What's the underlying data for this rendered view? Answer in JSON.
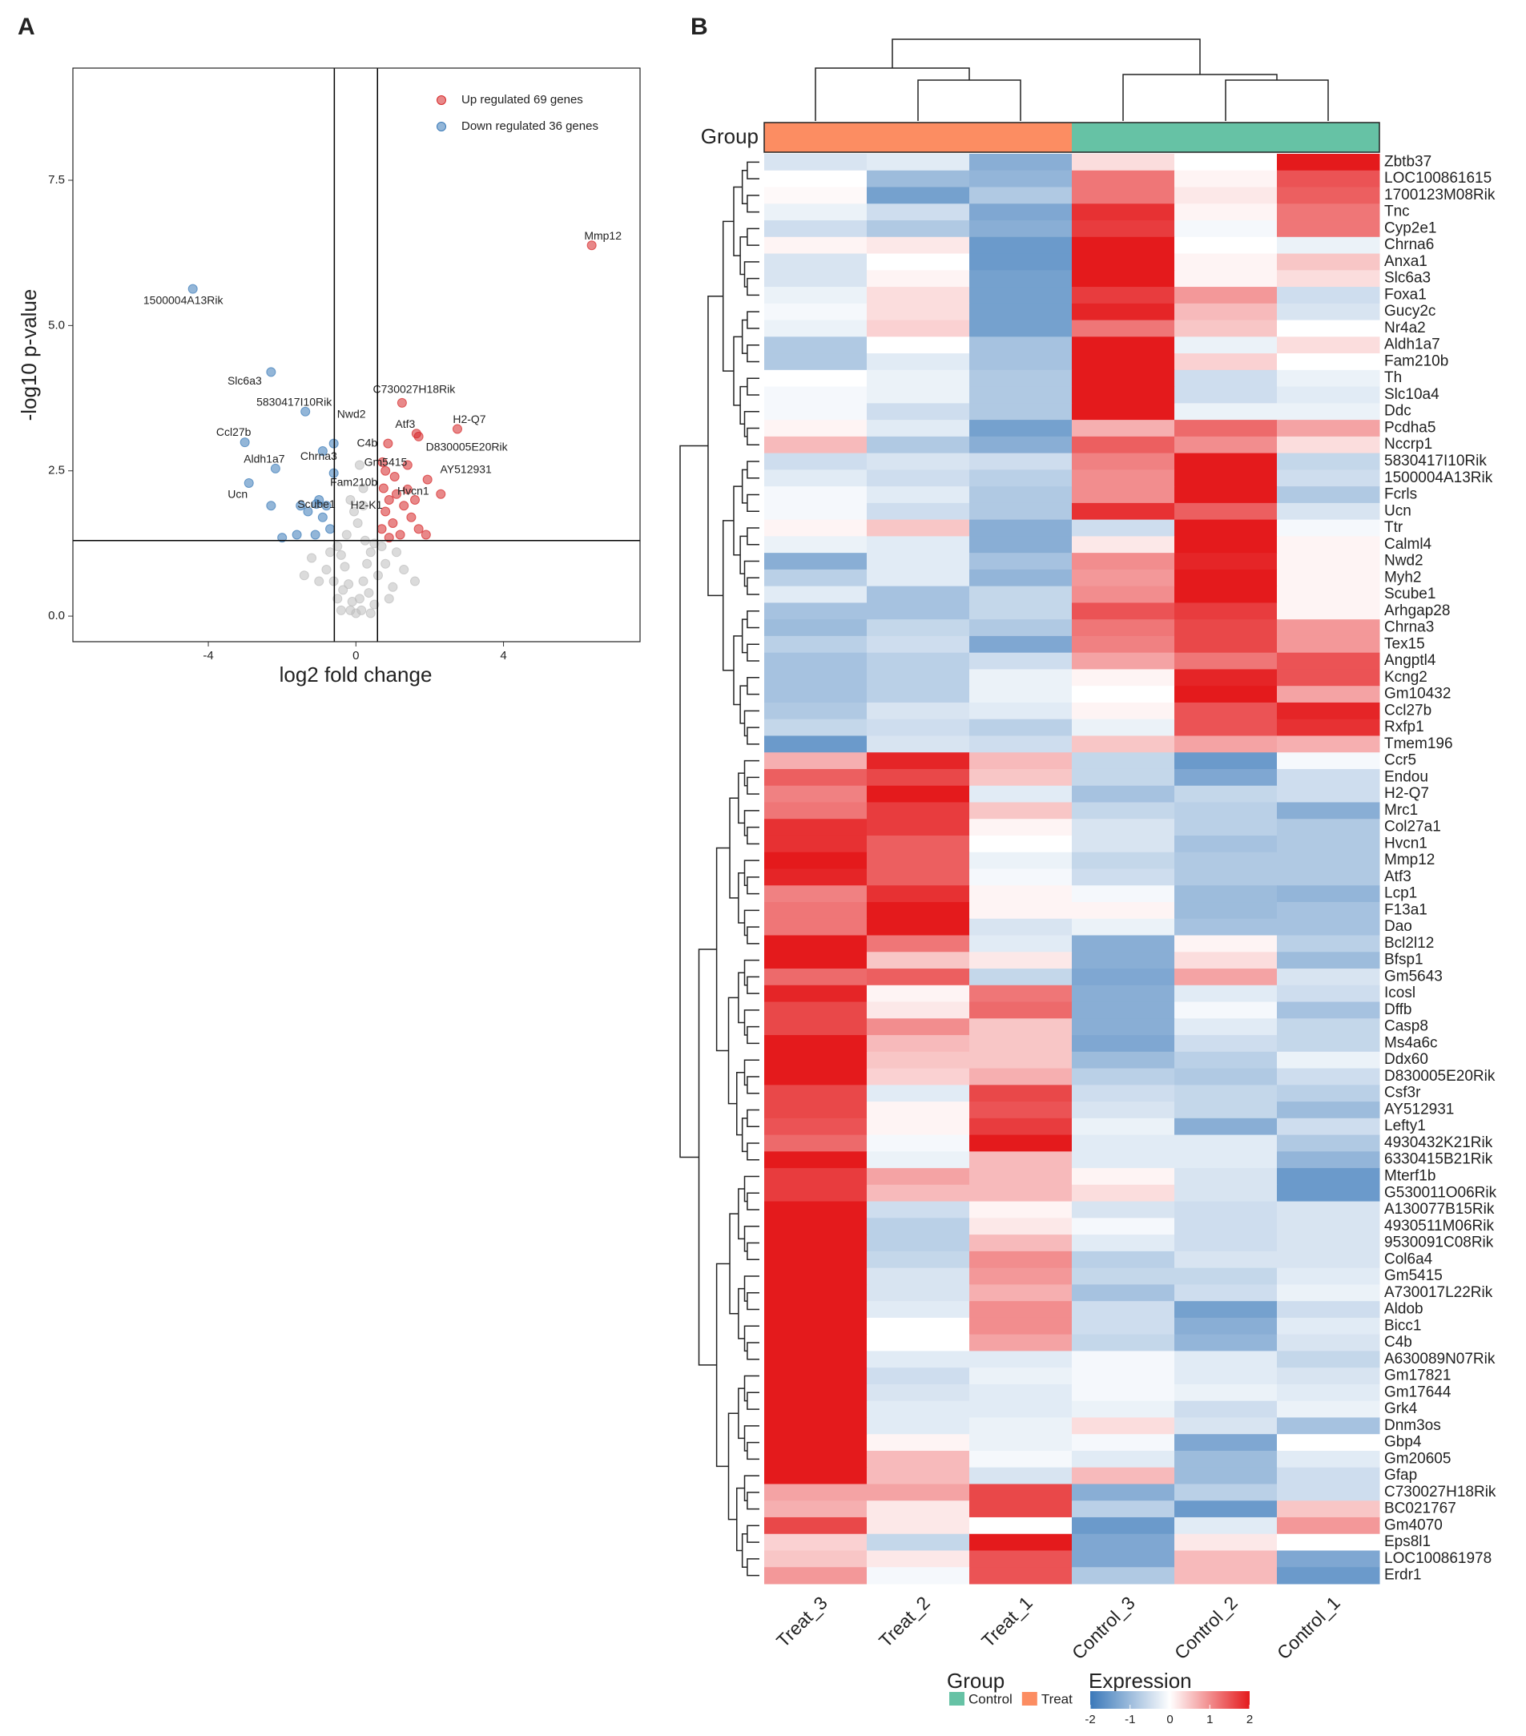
{
  "chart_data": [
    {
      "type": "scatter",
      "panel": "A",
      "xlabel": "log2 fold change",
      "ylabel": "-log10 p-value",
      "xlim": [
        -7.67,
        7.7
      ],
      "ylim": [
        -0.44,
        9.43
      ],
      "xticks": [
        -4,
        0,
        4
      ],
      "yticks": [
        {
          "value": 0,
          "label": "0.0"
        },
        2.5,
        {
          "value": 5,
          "label": "5.0"
        },
        7.5
      ],
      "thresholds": {
        "x": [
          -0.585,
          0.585
        ],
        "y": 1.301
      },
      "legend": "top-right",
      "series": [
        {
          "name": "Up regulated 69 genes",
          "color": "#d62728",
          "x": [
            6.39,
            1.25,
            1.64,
            2.75,
            0.87,
            1.7,
            0.72,
            1.94,
            1.4,
            0.7,
            0.8,
            0.9,
            1.0,
            1.1,
            1.2,
            1.3,
            0.75,
            1.5,
            1.7,
            0.9,
            1.05,
            1.6,
            1.9,
            0.8,
            1.4,
            2.3
          ],
          "y": [
            6.38,
            3.67,
            3.14,
            3.22,
            2.97,
            3.09,
            2.65,
            2.35,
            2.18,
            1.5,
            1.8,
            2.0,
            1.6,
            2.1,
            1.4,
            1.9,
            2.2,
            1.7,
            1.5,
            1.35,
            2.4,
            2.0,
            1.4,
            2.5,
            2.6,
            2.1
          ],
          "labels": [
            "Mmp12",
            "C730027H18Rik",
            "Atf3",
            "H2-Q7",
            "C4b",
            "D830005E20Rik",
            "Gm5415",
            "AY512931",
            "Hvcn1",
            null,
            null,
            null,
            null,
            null,
            null,
            null,
            null,
            null,
            null,
            null,
            null,
            null,
            null,
            null,
            null,
            null
          ]
        },
        {
          "name": "Down regulated 36 genes",
          "color": "#3a7ab8",
          "x": [
            -4.42,
            -2.3,
            -1.37,
            -3.01,
            -2.18,
            -2.9,
            -0.6,
            -0.9,
            -0.6,
            -1.07,
            -0.7,
            -0.9,
            -1.1,
            -1.3,
            -1.6,
            -2.0,
            -0.8,
            -1.0,
            -2.3,
            -1.5
          ],
          "y": [
            5.63,
            4.2,
            3.52,
            2.99,
            2.54,
            2.29,
            2.97,
            2.84,
            2.46,
            1.93,
            1.5,
            1.7,
            1.4,
            1.8,
            1.4,
            1.35,
            1.9,
            2.0,
            1.9,
            1.9
          ],
          "labels": [
            "1500004A13Rik",
            "Slc6a3",
            "5830417I10Rik",
            "Ccl27b",
            "Aldh1a7",
            "Ucn",
            "Nwd2",
            "Chrna3",
            "Fam210b",
            "Scube1",
            null,
            null,
            null,
            null,
            null,
            null,
            null,
            null,
            null,
            null
          ]
        },
        {
          "color": "#bdbdbd",
          "x": [
            0.2,
            0,
            0.1,
            -0.1,
            0.2,
            -0.2,
            0.3,
            -0.3,
            0.4,
            -0.4,
            0.5,
            -0.5,
            0.15,
            -0.15,
            0.35,
            -0.35,
            0.6,
            -0.6,
            0.8,
            -0.8,
            1.0,
            -1.0,
            0.5,
            -0.5,
            1.3,
            -1.2,
            0.7,
            -0.7,
            0.25,
            -0.25,
            0.05,
            -0.05,
            0.2,
            0.1,
            -0.15,
            1.1,
            -1.4,
            1.6,
            0.4,
            -0.4,
            0.9
          ],
          "y": [
            1.9,
            0.05,
            0.3,
            0.25,
            0.6,
            0.55,
            0.9,
            0.85,
            1.1,
            1.05,
            1.25,
            1.2,
            0.1,
            0.1,
            0.4,
            0.45,
            0.7,
            0.6,
            0.9,
            0.8,
            0.5,
            0.6,
            0.2,
            0.3,
            0.8,
            1.0,
            1.2,
            1.1,
            1.3,
            1.4,
            1.6,
            1.8,
            2.2,
            2.6,
            2.0,
            1.1,
            0.7,
            0.6,
            0.05,
            0.1,
            0.3
          ],
          "labels": [
            "H2-K1",
            null,
            null,
            null,
            null,
            null,
            null,
            null,
            null,
            null,
            null,
            null,
            null,
            null,
            null,
            null,
            null,
            null,
            null,
            null,
            null,
            null,
            null,
            null,
            null,
            null,
            null,
            null,
            null,
            null,
            null,
            null,
            null,
            null,
            null,
            null,
            null,
            null,
            null,
            null,
            null
          ]
        }
      ]
    },
    {
      "type": "heatmap",
      "panel": "B",
      "columns": [
        "Treat_3",
        "Treat_2",
        "Treat_1",
        "Control_3",
        "Control_2",
        "Control_1"
      ],
      "group_title": "Group",
      "groups": [
        {
          "name": "Control",
          "color": "#66c2a5"
        },
        {
          "name": "Treat",
          "color": "#fc8d62"
        }
      ],
      "column_groups": [
        1,
        1,
        1,
        0,
        0,
        0
      ],
      "colors": [
        "#3a78b9",
        "#ffffff",
        "#e41a1c"
      ],
      "clim": [
        -2,
        2
      ],
      "legend_title": "Expression",
      "legend_ticks": [
        -2,
        -1,
        0,
        1,
        2
      ],
      "rows": [
        "Zbtb37",
        "LOC100861615",
        "1700123M08Rik",
        "Tnc",
        "Cyp2e1",
        "Chrna6",
        "Anxa1",
        "Slc6a3",
        "Foxa1",
        "Gucy2c",
        "Nr4a2",
        "Aldh1a7",
        "Fam210b",
        "Th",
        "Slc10a4",
        "Ddc",
        "Pcdha5",
        "Nccrp1",
        "5830417I10Rik",
        "1500004A13Rik",
        "Fcrls",
        "Ucn",
        "Ttr",
        "Calml4",
        "Nwd2",
        "Myh2",
        "Scube1",
        "Arhgap28",
        "Chrna3",
        "Tex15",
        "Angptl4",
        "Kcng2",
        "Gm10432",
        "Ccl27b",
        "Rxfp1",
        "Tmem196",
        "Ccr5",
        "Endou",
        "H2-Q7",
        "Mrc1",
        "Col27a1",
        "Hvcn1",
        "Mmp12",
        "Atf3",
        "Lcp1",
        "F13a1",
        "Dao",
        "Bcl2l12",
        "Bfsp1",
        "Gm5643",
        "Icosl",
        "Dffb",
        "Casp8",
        "Ms4a6c",
        "Ddx60",
        "D830005E20Rik",
        "Csf3r",
        "AY512931",
        "Lefty1",
        "4930432K21Rik",
        "6330415B21Rik",
        "Mterf1b",
        "G530011O06Rik",
        "A130077B15Rik",
        "4930511M06Rik",
        "9530091C08Rik",
        "Col6a4",
        "Gm5415",
        "A730017L22Rik",
        "Aldob",
        "Bicc1",
        "C4b",
        "A630089N07Rik",
        "Gm17821",
        "Gm17644",
        "Grk4",
        "Dnm3os",
        "Gbp4",
        "Gm20605",
        "Gfap",
        "C730027H18Rik",
        "BC021767",
        "Gm4070",
        "Eps8l1",
        "LOC100861978",
        "Erdr1"
      ],
      "values": [
        [
          -0.4,
          -0.3,
          -1.2,
          0.3,
          0,
          2
        ],
        [
          0,
          -1,
          -1.1,
          1.2,
          0.1,
          1.5
        ],
        [
          0.05,
          -1.4,
          -0.8,
          1.2,
          0.2,
          1.4
        ],
        [
          -0.2,
          -0.5,
          -1.3,
          1.8,
          0.1,
          1.2
        ],
        [
          -0.5,
          -0.8,
          -1.2,
          1.7,
          -0.1,
          1.2
        ],
        [
          0.1,
          0.2,
          -1.5,
          2,
          0,
          -0.2
        ],
        [
          -0.4,
          0,
          -1.5,
          2,
          0.1,
          0.5
        ],
        [
          -0.4,
          0.1,
          -1.4,
          2,
          0.1,
          0.3
        ],
        [
          -0.2,
          0.3,
          -1.4,
          1.7,
          0.9,
          -0.5
        ],
        [
          -0.1,
          0.3,
          -1.4,
          1.9,
          0.6,
          -0.4
        ],
        [
          -0.2,
          0.4,
          -1.4,
          1.2,
          0.5,
          0
        ],
        [
          -0.8,
          0,
          -0.9,
          2,
          -0.2,
          0.3
        ],
        [
          -0.8,
          -0.3,
          -0.9,
          2,
          0.4,
          0
        ],
        [
          0,
          -0.2,
          -0.8,
          2,
          -0.5,
          -0.2
        ],
        [
          -0.1,
          -0.2,
          -0.8,
          2,
          -0.5,
          -0.3
        ],
        [
          -0.1,
          -0.5,
          -0.8,
          2,
          -0.2,
          -0.2
        ],
        [
          0.1,
          -0.3,
          -1.4,
          0.7,
          1.3,
          0.8
        ],
        [
          0.6,
          -0.8,
          -1.2,
          1.4,
          1.0,
          0.3
        ],
        [
          -0.5,
          -0.4,
          -0.5,
          1.1,
          2,
          -0.6
        ],
        [
          -0.3,
          -0.5,
          -0.7,
          1.0,
          2,
          -0.5
        ],
        [
          -0.1,
          -0.3,
          -0.8,
          1.0,
          2,
          -0.8
        ],
        [
          -0.1,
          -0.5,
          -0.8,
          1.8,
          1.4,
          -0.4
        ],
        [
          0.1,
          0.5,
          -1.2,
          -0.5,
          2,
          -0.1
        ],
        [
          -0.2,
          -0.3,
          -1.2,
          0.2,
          2,
          0.1
        ],
        [
          -1.2,
          -0.3,
          -0.9,
          1.0,
          1.9,
          0.1
        ],
        [
          -0.7,
          -0.3,
          -1.1,
          0.9,
          2,
          0.1
        ],
        [
          -0.3,
          -0.9,
          -0.6,
          1.0,
          2,
          0.1
        ],
        [
          -0.9,
          -0.9,
          -0.6,
          1.5,
          1.7,
          0.1
        ],
        [
          -1.0,
          -0.6,
          -0.8,
          1.2,
          1.6,
          0.9
        ],
        [
          -0.7,
          -0.5,
          -1.3,
          1.1,
          1.6,
          0.9
        ],
        [
          -0.9,
          -0.7,
          -0.5,
          0.8,
          1.2,
          1.5
        ],
        [
          -0.9,
          -0.7,
          -0.2,
          0.1,
          1.9,
          1.5
        ],
        [
          -0.9,
          -0.7,
          -0.2,
          0,
          2,
          0.8
        ],
        [
          -0.8,
          -0.4,
          -0.3,
          0.1,
          1.5,
          1.9
        ],
        [
          -0.6,
          -0.5,
          -0.7,
          -0.2,
          1.5,
          1.8
        ],
        [
          -1.5,
          -0.4,
          -0.5,
          0.5,
          0.8,
          0.7
        ],
        [
          0.7,
          1.9,
          0.6,
          -0.6,
          -1.5,
          -0.1
        ],
        [
          1.4,
          1.6,
          0.5,
          -0.6,
          -1.3,
          -0.5
        ],
        [
          1.1,
          2,
          -0.3,
          -0.9,
          -0.6,
          -0.5
        ],
        [
          1.2,
          1.7,
          0.5,
          -0.6,
          -0.7,
          -1.2
        ],
        [
          1.8,
          1.7,
          0.1,
          -0.4,
          -0.7,
          -0.8
        ],
        [
          1.8,
          1.4,
          0,
          -0.4,
          -0.9,
          -0.8
        ],
        [
          2,
          1.4,
          -0.2,
          -0.6,
          -0.8,
          -0.8
        ],
        [
          1.9,
          1.4,
          -0.1,
          -0.5,
          -0.8,
          -0.8
        ],
        [
          1.1,
          1.8,
          0.1,
          -0.1,
          -1.0,
          -1.1
        ],
        [
          1.2,
          2,
          0.1,
          0.1,
          -1.0,
          -0.9
        ],
        [
          1.2,
          2,
          -0.4,
          -0.2,
          -0.9,
          -0.9
        ],
        [
          2,
          1.2,
          -0.3,
          -1.2,
          0.1,
          -0.7
        ],
        [
          2,
          0.5,
          0.2,
          -1.2,
          0.3,
          -1.0
        ],
        [
          1.3,
          1.4,
          -0.6,
          -1.3,
          0.8,
          -0.4
        ],
        [
          1.9,
          0.1,
          1.2,
          -1.2,
          -0.3,
          -0.5
        ],
        [
          1.6,
          0.2,
          1.3,
          -1.2,
          -0.1,
          -0.9
        ],
        [
          1.6,
          1,
          0.5,
          -1.2,
          -0.3,
          -0.6
        ],
        [
          2,
          0.6,
          0.5,
          -1.3,
          -0.5,
          -0.6
        ],
        [
          2,
          0.5,
          0.5,
          -1,
          -0.7,
          -0.2
        ],
        [
          2,
          0.4,
          0.7,
          -0.7,
          -0.8,
          -0.5
        ],
        [
          1.6,
          -0.3,
          1.6,
          -0.5,
          -0.6,
          -0.7
        ],
        [
          1.6,
          0.1,
          1.5,
          -0.4,
          -0.6,
          -1.0
        ],
        [
          1.5,
          0.1,
          1.7,
          -0.2,
          -1.2,
          -0.5
        ],
        [
          1.3,
          -0.1,
          2,
          -0.3,
          -0.3,
          -0.8
        ],
        [
          2,
          -0.2,
          0.6,
          -0.3,
          -0.3,
          -1.1
        ],
        [
          1.7,
          0.8,
          0.6,
          0.1,
          -0.4,
          -1.5
        ],
        [
          1.7,
          0.6,
          0.6,
          0.3,
          -0.4,
          -1.5
        ],
        [
          2,
          -0.5,
          0.1,
          -0.4,
          -0.5,
          -0.4
        ],
        [
          2,
          -0.7,
          0.2,
          -0.1,
          -0.5,
          -0.4
        ],
        [
          2,
          -0.7,
          0.6,
          -0.3,
          -0.5,
          -0.4
        ],
        [
          2,
          -0.6,
          1.0,
          -0.7,
          -0.4,
          -0.4
        ],
        [
          2,
          -0.4,
          0.9,
          -0.6,
          -0.6,
          -0.3
        ],
        [
          2,
          -0.4,
          0.7,
          -0.9,
          -0.5,
          -0.2
        ],
        [
          2,
          -0.3,
          1.0,
          -0.5,
          -1.4,
          -0.5
        ],
        [
          2,
          0,
          1.0,
          -0.5,
          -1.2,
          -0.3
        ],
        [
          2,
          0,
          0.8,
          -0.6,
          -1.1,
          -0.4
        ],
        [
          2,
          -0.3,
          -0.3,
          -0.1,
          -0.3,
          -0.6
        ],
        [
          2,
          -0.5,
          -0.2,
          -0.1,
          -0.3,
          -0.4
        ],
        [
          2,
          -0.4,
          -0.3,
          -0.1,
          -0.2,
          -0.3
        ],
        [
          2,
          -0.3,
          -0.3,
          -0.2,
          -0.5,
          -0.2
        ],
        [
          2,
          -0.3,
          -0.2,
          0.3,
          -0.4,
          -0.9
        ],
        [
          2,
          0.1,
          -0.2,
          -0.1,
          -1.3,
          0
        ],
        [
          2,
          0.6,
          -0.1,
          -0.3,
          -1.0,
          -0.3
        ],
        [
          2,
          0.6,
          -0.4,
          0.6,
          -1.0,
          -0.5
        ],
        [
          0.8,
          0.8,
          1.6,
          -1.2,
          -0.7,
          -0.5
        ],
        [
          0.7,
          0.2,
          1.6,
          -0.7,
          -1.5,
          0.5
        ],
        [
          1.6,
          0.2,
          0,
          -1.5,
          -0.3,
          0.9
        ],
        [
          0.4,
          -0.6,
          2,
          -1.3,
          0.2,
          0
        ],
        [
          0.5,
          0.2,
          1.5,
          -1.3,
          0.6,
          -1.3
        ],
        [
          0.9,
          -0.1,
          1.5,
          -0.8,
          0.6,
          -1.5
        ]
      ]
    }
  ]
}
